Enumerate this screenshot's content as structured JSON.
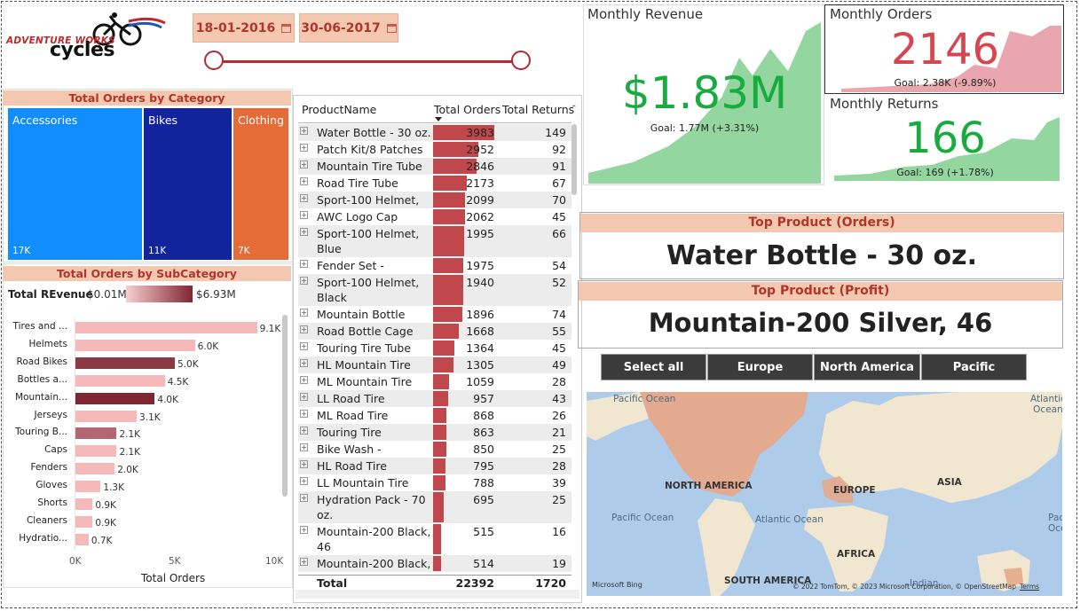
{
  "logo": {
    "line1": "ADVENTURE WORKS",
    "line2": "cycles"
  },
  "dates": {
    "start": "18-01-2016",
    "end": "30-06-2017"
  },
  "category_chart": {
    "title": "Total Orders by Category",
    "tiles": [
      {
        "label": "Accessories",
        "value": "17K",
        "color": "#118dff"
      },
      {
        "label": "Bikes",
        "value": "11K",
        "color": "#12239e"
      },
      {
        "label": "Clothing",
        "value": "7K",
        "color": "#e66c37"
      }
    ]
  },
  "subcategory_chart": {
    "title": "Total Orders by SubCategory",
    "legend_label": "Total REvenue",
    "legend_min": "$0.01M",
    "legend_max": "$6.93M",
    "xlabel": "Total Orders",
    "ticks": [
      "0K",
      "5K",
      "10K"
    ]
  },
  "chart_data": {
    "type": "bar",
    "orientation": "horizontal",
    "title": "Total Orders by SubCategory",
    "xlabel": "Total Orders",
    "xlim": [
      0,
      10000
    ],
    "categories": [
      "Tires and ...",
      "Helmets",
      "Road Bikes",
      "Bottles a...",
      "Mountain...",
      "Jerseys",
      "Touring B...",
      "Caps",
      "Fenders",
      "Gloves",
      "Shorts",
      "Cleaners",
      "Hydratio..."
    ],
    "values": [
      9100,
      6000,
      5000,
      4500,
      4000,
      3100,
      2100,
      2100,
      2000,
      1300,
      900,
      900,
      700
    ],
    "data_labels": [
      "9.1K",
      "6.0K",
      "5.0K",
      "4.5K",
      "4.0K",
      "3.1K",
      "2.1K",
      "2.1K",
      "2.0K",
      "1.3K",
      "0.9K",
      "0.9K",
      "0.7K"
    ],
    "bar_colors": [
      "#f6b9b9",
      "#f6b9b9",
      "#8b3a44",
      "#f6b9b9",
      "#7e2631",
      "#f6b9b9",
      "#b46770",
      "#f6b9b9",
      "#f6b9b9",
      "#f6b9b9",
      "#f6b9b9",
      "#f6b9b9",
      "#f6b9b9"
    ]
  },
  "table": {
    "headers": {
      "name": "ProductName",
      "orders": "Total Orders",
      "returns": "Total Returns"
    },
    "max_orders": 3983,
    "rows": [
      {
        "name": "Water Bottle - 30 oz.",
        "orders": 3983,
        "returns": 149,
        "lines": 1
      },
      {
        "name": "Patch Kit/8 Patches",
        "orders": 2952,
        "returns": 92,
        "lines": 1
      },
      {
        "name": "Mountain Tire Tube",
        "orders": 2846,
        "returns": 91,
        "lines": 1
      },
      {
        "name": "Road Tire Tube",
        "orders": 2173,
        "returns": 67,
        "lines": 1
      },
      {
        "name": "Sport-100 Helmet,",
        "orders": 2099,
        "returns": 70,
        "lines": 1
      },
      {
        "name": "AWC Logo Cap",
        "orders": 2062,
        "returns": 45,
        "lines": 1
      },
      {
        "name": "Sport-100 Helmet, Blue",
        "orders": 1995,
        "returns": 66,
        "lines": 2
      },
      {
        "name": "Fender Set -",
        "orders": 1975,
        "returns": 54,
        "lines": 1
      },
      {
        "name": "Sport-100 Helmet, Black",
        "orders": 1940,
        "returns": 52,
        "lines": 2
      },
      {
        "name": "Mountain Bottle Cage",
        "orders": 1896,
        "returns": 74,
        "lines": 1
      },
      {
        "name": "Road Bottle Cage",
        "orders": 1668,
        "returns": 55,
        "lines": 1
      },
      {
        "name": "Touring Tire Tube",
        "orders": 1364,
        "returns": 45,
        "lines": 1
      },
      {
        "name": "HL Mountain Tire",
        "orders": 1305,
        "returns": 49,
        "lines": 1
      },
      {
        "name": "ML Mountain Tire",
        "orders": 1059,
        "returns": 28,
        "lines": 1
      },
      {
        "name": "LL Road Tire",
        "orders": 957,
        "returns": 43,
        "lines": 1
      },
      {
        "name": "ML Road Tire",
        "orders": 868,
        "returns": 26,
        "lines": 1
      },
      {
        "name": "Touring Tire",
        "orders": 863,
        "returns": 21,
        "lines": 1
      },
      {
        "name": "Bike Wash - Dissolver",
        "orders": 850,
        "returns": 25,
        "lines": 1
      },
      {
        "name": "HL Road Tire",
        "orders": 795,
        "returns": 28,
        "lines": 1
      },
      {
        "name": "LL Mountain Tire",
        "orders": 788,
        "returns": 39,
        "lines": 1
      },
      {
        "name": "Hydration Pack - 70 oz.",
        "orders": 695,
        "returns": 25,
        "lines": 2
      },
      {
        "name": "Mountain-200 Black, 46",
        "orders": 515,
        "returns": 16,
        "lines": 2
      },
      {
        "name": "Mountain-200 Black,",
        "orders": 514,
        "returns": 19,
        "lines": 1
      }
    ],
    "total": {
      "label": "Total",
      "orders": "22392",
      "returns": "1720"
    }
  },
  "kpis": {
    "revenue": {
      "title": "Monthly Revenue",
      "value": "$1.83M",
      "goal": "Goal: 1.77M (+3.31%)",
      "value_color": "#1aab40"
    },
    "orders": {
      "title": "Monthly Orders",
      "value": "2146",
      "goal": "Goal: 2.38K (-9.89%)",
      "value_color": "#d64550"
    },
    "returns": {
      "title": "Monthly Returns",
      "value": "166",
      "goal": "Goal: 169 (+1.78%)",
      "value_color": "#1aab40"
    }
  },
  "top_orders": {
    "title": "Top Product (Orders)",
    "value": "Water Bottle - 30 oz."
  },
  "top_profit": {
    "title": "Top Product (Profit)",
    "value": "Mountain-200 Silver, 46"
  },
  "region_buttons": [
    "Select all",
    "Europe",
    "North America",
    "Pacific"
  ],
  "map": {
    "labels": {
      "pacific_ocean_left": "Pacific Ocean",
      "atlantic_ocean_top": "Atlantic Ocean",
      "indian_top": "Indian Ocean",
      "north_america": "NORTH AMERICA",
      "europe": "EUROPE",
      "asia": "ASIA",
      "pacific_ocean_mid": "Pacific Ocean",
      "atlantic_ocean": "Atlantic Ocean",
      "pacific_ocean_right": "Pacific Ocean",
      "africa": "AFRICA",
      "south_america": "SOUTH AMERICA",
      "indian": "Indian"
    },
    "bing": "Microsoft Bing",
    "copyright": "© 2022 TomTom, © 2023 Microsoft Corporation, © OpenStreetMap",
    "terms": "Terms"
  }
}
